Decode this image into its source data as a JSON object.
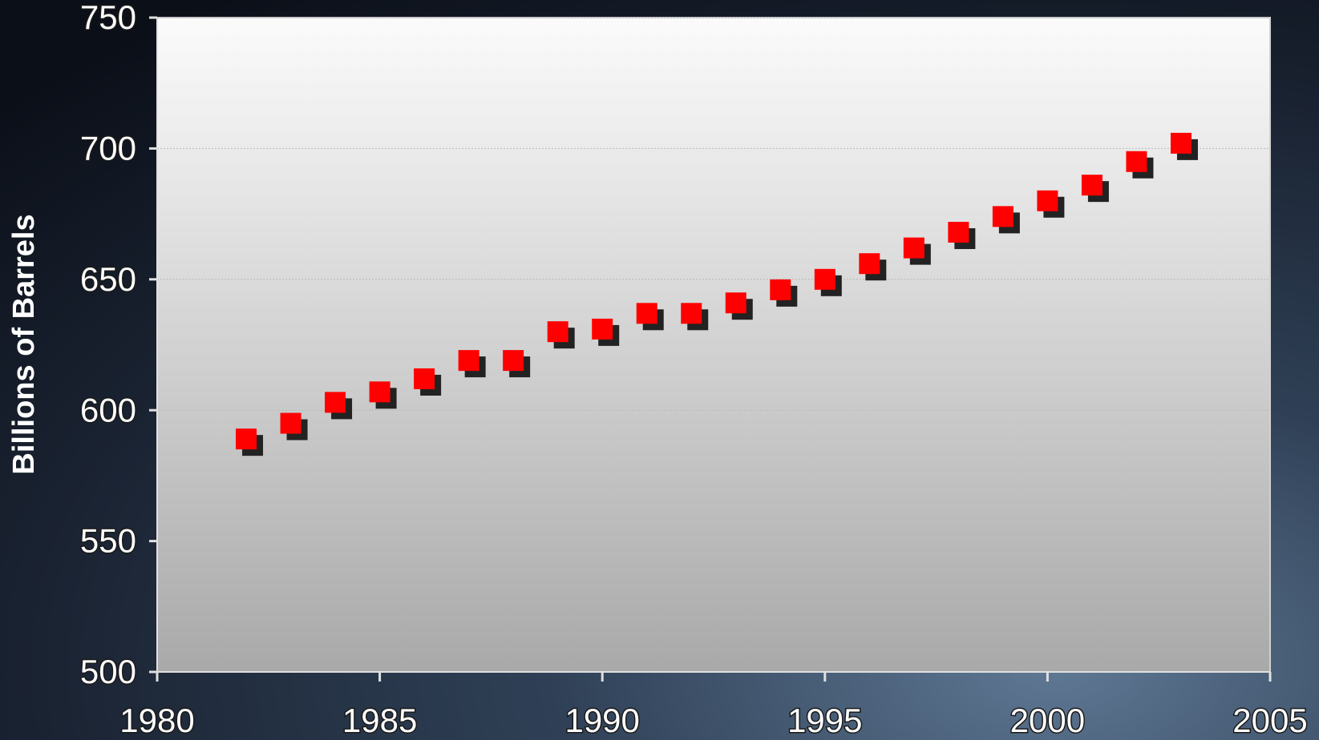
{
  "chart_data": {
    "type": "scatter",
    "y_label": "Billions of Barrels",
    "x": [
      1982,
      1983,
      1984,
      1985,
      1986,
      1987,
      1988,
      1989,
      1990,
      1991,
      1992,
      1993,
      1994,
      1995,
      1996,
      1997,
      1998,
      1999,
      2000,
      2001,
      2002,
      2003
    ],
    "values": [
      589,
      595,
      603,
      607,
      612,
      619,
      619,
      630,
      631,
      637,
      637,
      641,
      646,
      650,
      656,
      662,
      668,
      674,
      680,
      686,
      695,
      702
    ],
    "color": "#ff0000",
    "xlim": [
      1980,
      2005
    ],
    "xticks": [
      1980,
      1985,
      1990,
      1995,
      2000,
      2005
    ],
    "ylim": [
      500,
      750
    ],
    "yticks": [
      500,
      550,
      600,
      650,
      700,
      750
    ],
    "grid": true
  }
}
